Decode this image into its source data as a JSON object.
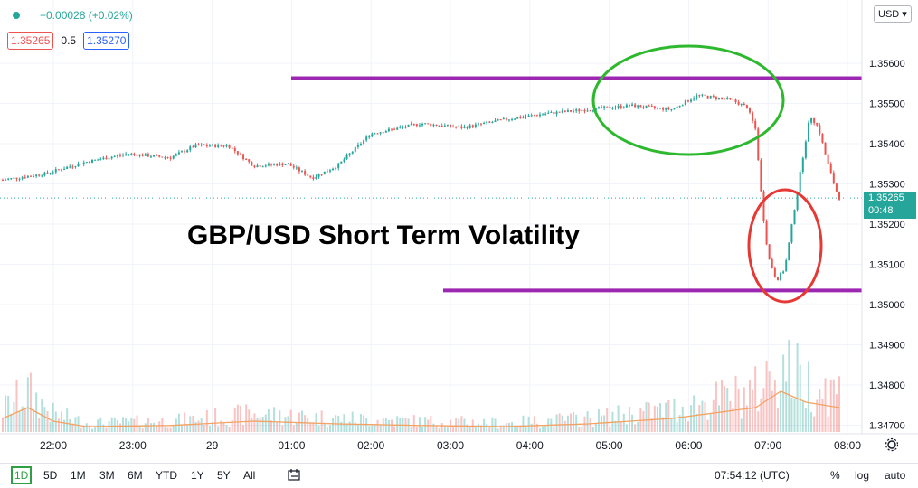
{
  "header": {
    "change_text": "+0.00028 (+0.02%)",
    "bid": "1.35265",
    "spread": "0.5",
    "ask": "1.35270"
  },
  "currency": "USD ▾",
  "annotation": "GBP/USD Short Term Volatility",
  "colors": {
    "up": "#26a69a",
    "down": "#ef5350",
    "level_line": "#9c27b0",
    "green_circle": "#2eb82e",
    "red_circle": "#e53935",
    "volume_line": "#f4a261"
  },
  "last_price": {
    "value": "1.35265",
    "countdown": "00:48"
  },
  "chart_data": {
    "type": "candlestick",
    "y_ticks": [
      "1.35600",
      "1.35500",
      "1.35400",
      "1.35300",
      "1.35200",
      "1.35100",
      "1.35000",
      "1.34900",
      "1.34800",
      "1.34700"
    ],
    "x_ticks": [
      "22:00",
      "23:00",
      "29",
      "01:00",
      "02:00",
      "03:00",
      "04:00",
      "05:00",
      "06:00",
      "07:00",
      "08:00"
    ],
    "ylim": [
      1.3466,
      1.3574
    ],
    "price_path": [
      {
        "t": 0.0,
        "p": 1.3531
      },
      {
        "t": 0.5,
        "p": 1.35325
      },
      {
        "t": 1.0,
        "p": 1.35355
      },
      {
        "t": 1.5,
        "p": 1.35375
      },
      {
        "t": 2.0,
        "p": 1.35365
      },
      {
        "t": 2.3,
        "p": 1.35395
      },
      {
        "t": 2.7,
        "p": 1.35395
      },
      {
        "t": 3.0,
        "p": 1.35345
      },
      {
        "t": 3.4,
        "p": 1.3535
      },
      {
        "t": 3.7,
        "p": 1.35315
      },
      {
        "t": 4.0,
        "p": 1.35345
      },
      {
        "t": 4.4,
        "p": 1.35425
      },
      {
        "t": 5.0,
        "p": 1.3545
      },
      {
        "t": 5.5,
        "p": 1.3544
      },
      {
        "t": 6.0,
        "p": 1.3546
      },
      {
        "t": 6.5,
        "p": 1.35475
      },
      {
        "t": 7.0,
        "p": 1.35485
      },
      {
        "t": 7.5,
        "p": 1.35495
      },
      {
        "t": 8.0,
        "p": 1.35485
      },
      {
        "t": 8.3,
        "p": 1.3552
      },
      {
        "t": 8.7,
        "p": 1.3551
      },
      {
        "t": 8.9,
        "p": 1.3549
      },
      {
        "t": 9.0,
        "p": 1.35435
      },
      {
        "t": 9.08,
        "p": 1.3524
      },
      {
        "t": 9.15,
        "p": 1.3512
      },
      {
        "t": 9.25,
        "p": 1.3506
      },
      {
        "t": 9.35,
        "p": 1.3509
      },
      {
        "t": 9.45,
        "p": 1.3522
      },
      {
        "t": 9.55,
        "p": 1.3535
      },
      {
        "t": 9.65,
        "p": 1.3547
      },
      {
        "t": 9.75,
        "p": 1.3544
      },
      {
        "t": 9.85,
        "p": 1.3536
      },
      {
        "t": 9.95,
        "p": 1.3529
      },
      {
        "t": 10.0,
        "p": 1.35265
      }
    ],
    "volume_path": [
      {
        "t": 0.0,
        "v": 0.25
      },
      {
        "t": 0.3,
        "v": 0.45
      },
      {
        "t": 0.6,
        "v": 0.2
      },
      {
        "t": 1.0,
        "v": 0.1
      },
      {
        "t": 2.0,
        "v": 0.12
      },
      {
        "t": 3.0,
        "v": 0.2
      },
      {
        "t": 4.0,
        "v": 0.15
      },
      {
        "t": 5.0,
        "v": 0.12
      },
      {
        "t": 6.0,
        "v": 0.1
      },
      {
        "t": 7.0,
        "v": 0.15
      },
      {
        "t": 8.0,
        "v": 0.25
      },
      {
        "t": 9.0,
        "v": 0.45
      },
      {
        "t": 9.3,
        "v": 0.75
      },
      {
        "t": 9.6,
        "v": 0.55
      },
      {
        "t": 10.0,
        "v": 0.45
      }
    ],
    "levels": [
      1.35563,
      1.35035
    ],
    "volume_axis_visible": false
  },
  "bottom": {
    "ranges": [
      "1D",
      "5D",
      "1M",
      "3M",
      "6M",
      "YTD",
      "1Y",
      "5Y",
      "All"
    ],
    "time": "07:54:12 (UTC)",
    "percent": "%",
    "log": "log",
    "auto": "auto"
  }
}
